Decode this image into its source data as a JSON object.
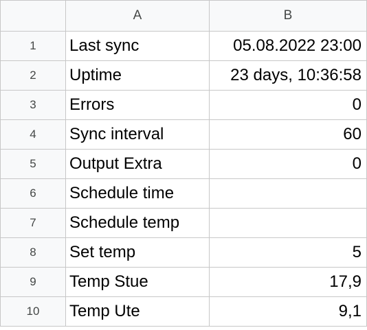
{
  "columns": {
    "a": "A",
    "b": "B"
  },
  "rows": [
    {
      "num": "1",
      "a": "Last sync",
      "b": "05.08.2022 23:00"
    },
    {
      "num": "2",
      "a": "Uptime",
      "b": "23 days, 10:36:58"
    },
    {
      "num": "3",
      "a": "Errors",
      "b": "0"
    },
    {
      "num": "4",
      "a": "Sync interval",
      "b": "60"
    },
    {
      "num": "5",
      "a": "Output Extra",
      "b": "0"
    },
    {
      "num": "6",
      "a": "Schedule time",
      "b": ""
    },
    {
      "num": "7",
      "a": "Schedule temp",
      "b": ""
    },
    {
      "num": "8",
      "a": "Set temp",
      "b": "5"
    },
    {
      "num": "9",
      "a": "Temp Stue",
      "b": "17,9"
    },
    {
      "num": "10",
      "a": "Temp Ute",
      "b": "9,1"
    }
  ],
  "colors": {
    "header_bg": "#f8f9fa",
    "grid_line": "#c7c7c7",
    "header_text": "#444746",
    "cell_text": "#000000"
  }
}
